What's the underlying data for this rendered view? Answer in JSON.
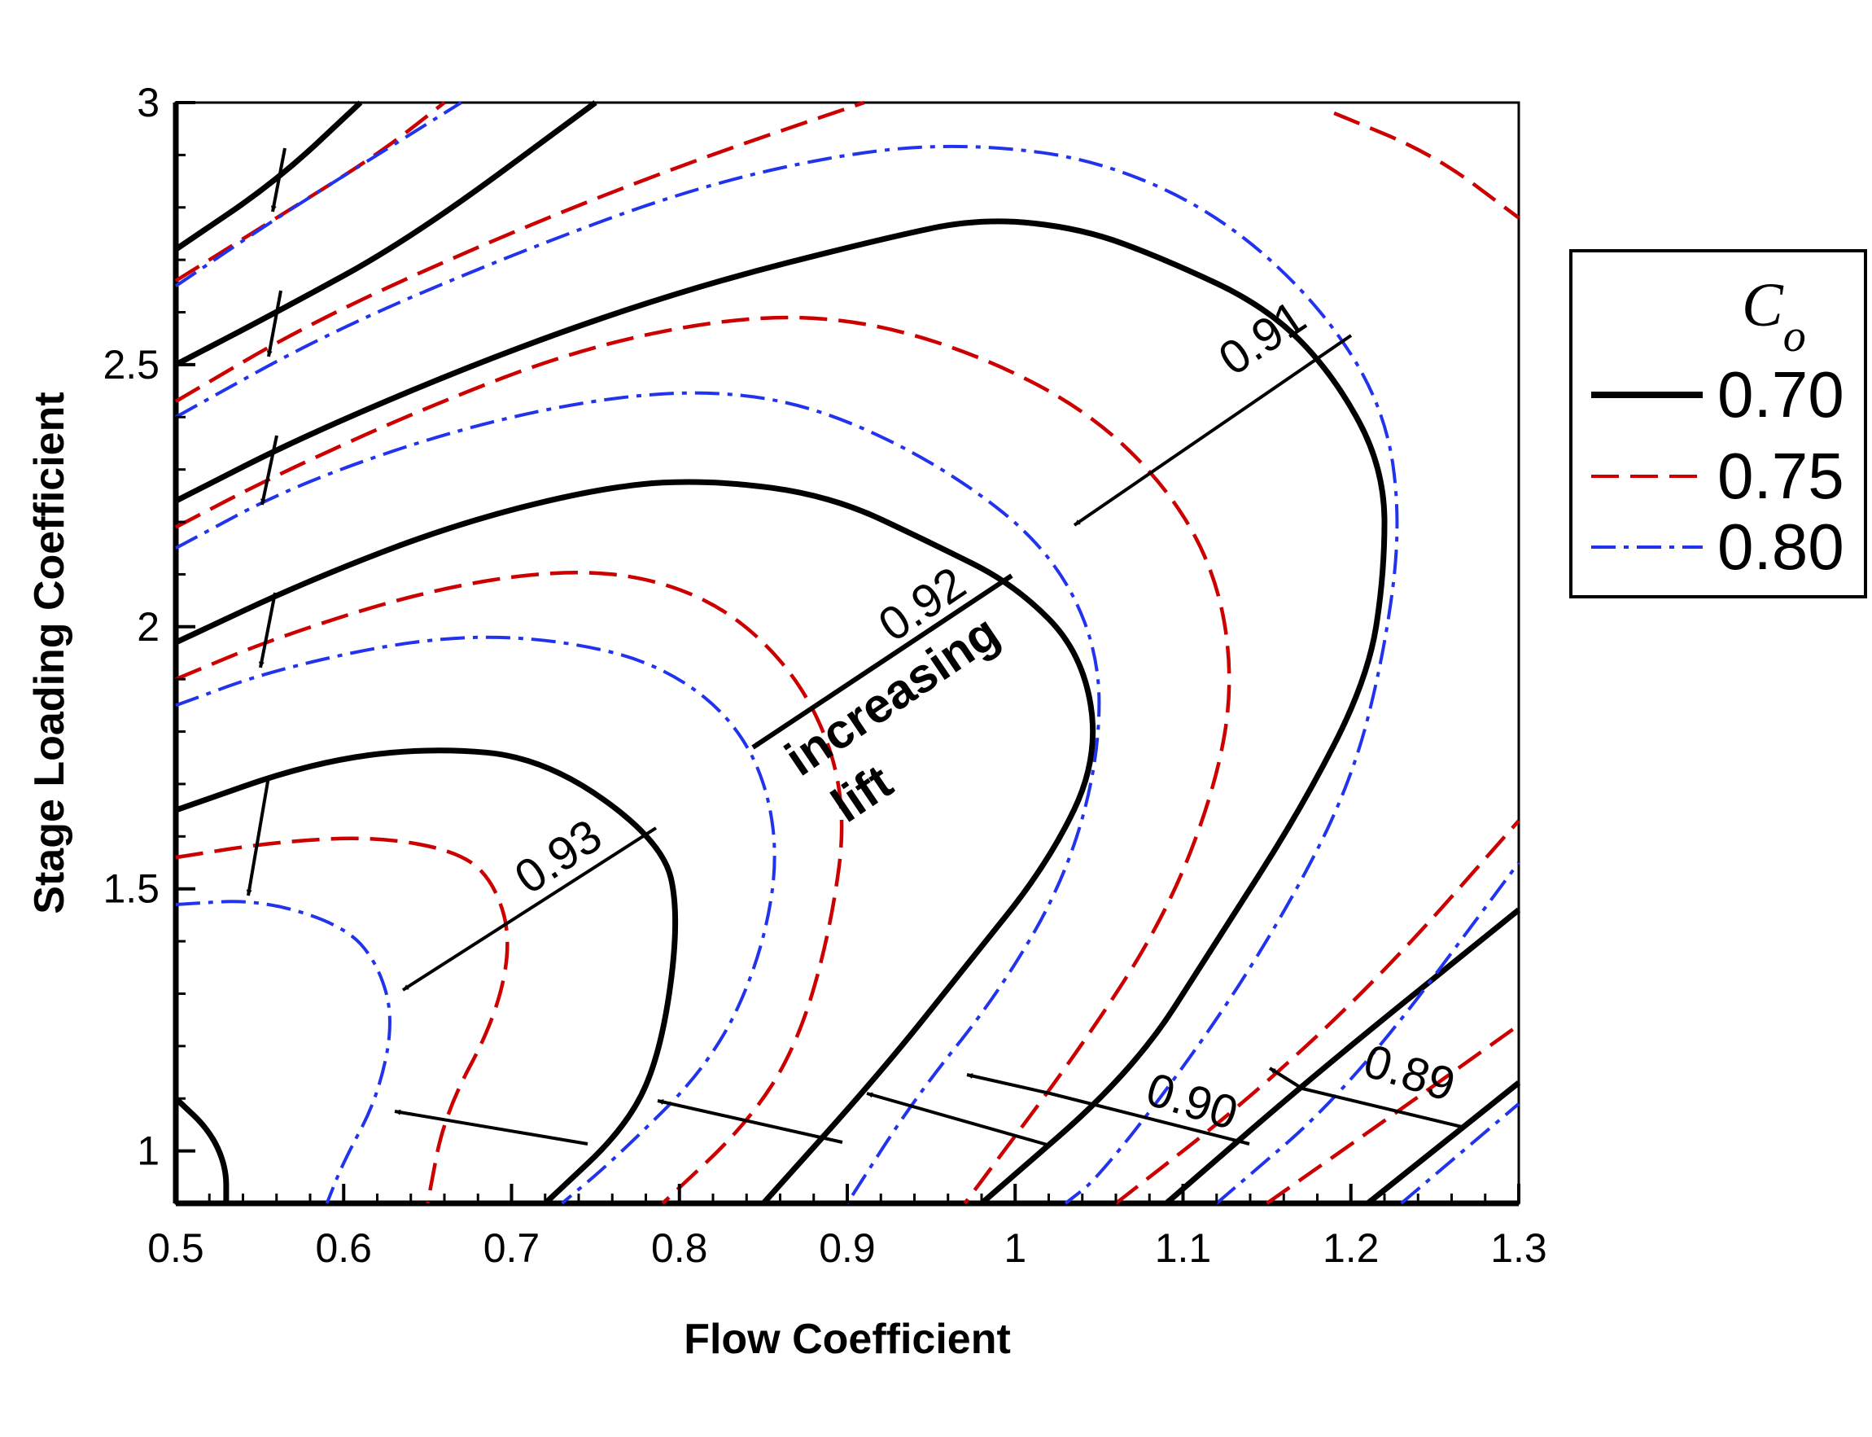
{
  "chart_data": {
    "type": "contour",
    "xlabel": "Flow Coefficient",
    "ylabel": "Stage Loading Coefficient",
    "xlim": [
      0.5,
      1.3
    ],
    "ylim": [
      0.9,
      3.0
    ],
    "xticks": [
      0.5,
      0.6,
      0.7,
      0.8,
      0.9,
      1,
      1.1,
      1.2,
      1.3
    ],
    "xtick_labels": [
      "0.5",
      "0.6",
      "0.7",
      "0.8",
      "0.9",
      "1",
      "1.1",
      "1.2",
      "1.3"
    ],
    "yticks": [
      1,
      1.5,
      2,
      2.5,
      3
    ],
    "ytick_labels": [
      "1",
      "1.5",
      "2",
      "2.5",
      "3"
    ],
    "grid": false,
    "legend": {
      "title": "C",
      "title_subscript": "o",
      "position": "right-outside",
      "entries": [
        {
          "label": "0.70",
          "color": "#000000",
          "style": "solid"
        },
        {
          "label": "0.75",
          "color": "#cc0000",
          "style": "dashed"
        },
        {
          "label": "0.80",
          "color": "#2233ee",
          "style": "dash-dot"
        }
      ]
    },
    "efficiency_levels": [
      "0.93",
      "0.92",
      "0.91",
      "0.90",
      "0.89"
    ],
    "annotations": [
      "increasing",
      "lift"
    ],
    "series": [
      {
        "name": "0.70",
        "style": "solid",
        "color": "#000000",
        "lines": [
          [
            [
              0.5,
              1.1
            ],
            [
              0.52,
              1.04
            ],
            [
              0.53,
              0.97
            ],
            [
              0.53,
              0.9
            ]
          ],
          [
            [
              0.5,
              1.65
            ],
            [
              0.58,
              1.74
            ],
            [
              0.65,
              1.77
            ],
            [
              0.72,
              1.75
            ],
            [
              0.79,
              1.59
            ],
            [
              0.8,
              1.45
            ],
            [
              0.79,
              1.2
            ],
            [
              0.77,
              1.05
            ],
            [
              0.72,
              0.9
            ]
          ],
          [
            [
              0.5,
              1.97
            ],
            [
              0.58,
              2.09
            ],
            [
              0.67,
              2.2
            ],
            [
              0.76,
              2.27
            ],
            [
              0.82,
              2.28
            ],
            [
              0.89,
              2.25
            ],
            [
              0.95,
              2.16
            ],
            [
              1.0,
              2.08
            ],
            [
              1.04,
              1.95
            ],
            [
              1.05,
              1.75
            ],
            [
              1.02,
              1.55
            ],
            [
              0.97,
              1.35
            ],
            [
              0.92,
              1.15
            ],
            [
              0.85,
              0.9
            ]
          ],
          [
            [
              0.5,
              2.24
            ],
            [
              0.58,
              2.37
            ],
            [
              0.7,
              2.53
            ],
            [
              0.81,
              2.65
            ],
            [
              0.92,
              2.74
            ],
            [
              0.98,
              2.78
            ],
            [
              1.04,
              2.76
            ],
            [
              1.09,
              2.7
            ],
            [
              1.15,
              2.61
            ],
            [
              1.19,
              2.48
            ],
            [
              1.22,
              2.3
            ],
            [
              1.22,
              2.1
            ],
            [
              1.21,
              1.9
            ],
            [
              1.17,
              1.65
            ],
            [
              1.12,
              1.4
            ],
            [
              1.07,
              1.15
            ],
            [
              0.98,
              0.9
            ]
          ],
          [
            [
              0.5,
              2.5
            ],
            [
              0.56,
              2.6
            ],
            [
              0.64,
              2.74
            ],
            [
              0.75,
              3.0
            ]
          ],
          [
            [
              0.5,
              2.72
            ],
            [
              0.56,
              2.85
            ],
            [
              0.61,
              3.0
            ]
          ],
          [
            [
              1.09,
              0.9
            ],
            [
              1.18,
              1.15
            ],
            [
              1.3,
              1.46
            ]
          ],
          [
            [
              1.21,
              0.9
            ],
            [
              1.3,
              1.13
            ]
          ]
        ]
      },
      {
        "name": "0.75",
        "style": "dashed",
        "color": "#cc0000",
        "lines": [
          [
            [
              0.5,
              1.56
            ],
            [
              0.56,
              1.59
            ],
            [
              0.62,
              1.6
            ],
            [
              0.67,
              1.57
            ],
            [
              0.69,
              1.51
            ],
            [
              0.7,
              1.4
            ],
            [
              0.69,
              1.25
            ],
            [
              0.66,
              1.07
            ],
            [
              0.65,
              0.9
            ]
          ],
          [
            [
              0.5,
              1.9
            ],
            [
              0.56,
              1.98
            ],
            [
              0.65,
              2.07
            ],
            [
              0.73,
              2.11
            ],
            [
              0.79,
              2.09
            ],
            [
              0.84,
              2.01
            ],
            [
              0.88,
              1.86
            ],
            [
              0.9,
              1.66
            ],
            [
              0.89,
              1.42
            ],
            [
              0.87,
              1.2
            ],
            [
              0.84,
              1.05
            ],
            [
              0.79,
              0.9
            ]
          ],
          [
            [
              0.5,
              2.19
            ],
            [
              0.56,
              2.29
            ],
            [
              0.65,
              2.42
            ],
            [
              0.74,
              2.53
            ],
            [
              0.83,
              2.59
            ],
            [
              0.9,
              2.59
            ],
            [
              0.97,
              2.53
            ],
            [
              1.04,
              2.42
            ],
            [
              1.09,
              2.27
            ],
            [
              1.12,
              2.1
            ],
            [
              1.13,
              1.9
            ],
            [
              1.12,
              1.7
            ],
            [
              1.09,
              1.45
            ],
            [
              1.04,
              1.2
            ],
            [
              0.97,
              0.9
            ]
          ],
          [
            [
              0.5,
              2.43
            ],
            [
              0.58,
              2.58
            ],
            [
              0.69,
              2.74
            ],
            [
              0.8,
              2.88
            ],
            [
              0.91,
              3.0
            ]
          ],
          [
            [
              0.5,
              2.66
            ],
            [
              0.56,
              2.78
            ],
            [
              0.62,
              2.9
            ],
            [
              0.66,
              3.0
            ]
          ],
          [
            [
              1.06,
              0.9
            ],
            [
              1.14,
              1.1
            ],
            [
              1.22,
              1.34
            ],
            [
              1.3,
              1.63
            ]
          ],
          [
            [
              1.15,
              0.9
            ],
            [
              1.23,
              1.08
            ],
            [
              1.3,
              1.24
            ]
          ],
          [
            [
              1.19,
              2.98
            ],
            [
              1.25,
              2.9
            ],
            [
              1.3,
              2.78
            ]
          ]
        ]
      },
      {
        "name": "0.80",
        "style": "dash-dot",
        "color": "#2233ee",
        "lines": [
          [
            [
              0.5,
              1.47
            ],
            [
              0.55,
              1.48
            ],
            [
              0.6,
              1.43
            ],
            [
              0.62,
              1.36
            ],
            [
              0.63,
              1.25
            ],
            [
              0.62,
              1.1
            ],
            [
              0.6,
              0.98
            ],
            [
              0.59,
              0.9
            ]
          ],
          [
            [
              0.5,
              1.85
            ],
            [
              0.56,
              1.92
            ],
            [
              0.65,
              1.98
            ],
            [
              0.72,
              1.98
            ],
            [
              0.79,
              1.93
            ],
            [
              0.84,
              1.8
            ],
            [
              0.86,
              1.6
            ],
            [
              0.85,
              1.38
            ],
            [
              0.82,
              1.17
            ],
            [
              0.76,
              0.98
            ],
            [
              0.73,
              0.9
            ]
          ],
          [
            [
              0.5,
              2.15
            ],
            [
              0.57,
              2.27
            ],
            [
              0.67,
              2.38
            ],
            [
              0.76,
              2.44
            ],
            [
              0.83,
              2.45
            ],
            [
              0.89,
              2.41
            ],
            [
              0.96,
              2.3
            ],
            [
              1.02,
              2.15
            ],
            [
              1.05,
              1.96
            ],
            [
              1.05,
              1.75
            ],
            [
              1.03,
              1.52
            ],
            [
              0.99,
              1.3
            ],
            [
              0.94,
              1.1
            ],
            [
              0.9,
              0.9
            ]
          ],
          [
            [
              0.5,
              2.4
            ],
            [
              0.59,
              2.56
            ],
            [
              0.7,
              2.71
            ],
            [
              0.81,
              2.84
            ],
            [
              0.91,
              2.91
            ],
            [
              0.98,
              2.92
            ],
            [
              1.05,
              2.89
            ],
            [
              1.12,
              2.79
            ],
            [
              1.18,
              2.62
            ],
            [
              1.22,
              2.42
            ],
            [
              1.23,
              2.2
            ],
            [
              1.22,
              1.95
            ],
            [
              1.2,
              1.7
            ],
            [
              1.16,
              1.45
            ],
            [
              1.11,
              1.2
            ],
            [
              1.05,
              0.95
            ],
            [
              1.03,
              0.9
            ]
          ],
          [
            [
              0.5,
              2.65
            ],
            [
              0.56,
              2.78
            ],
            [
              0.64,
              2.94
            ],
            [
              0.67,
              3.0
            ]
          ],
          [
            [
              1.12,
              0.9
            ],
            [
              1.2,
              1.12
            ],
            [
              1.3,
              1.55
            ]
          ],
          [
            [
              1.23,
              0.9
            ],
            [
              1.3,
              1.09
            ]
          ]
        ]
      }
    ]
  }
}
